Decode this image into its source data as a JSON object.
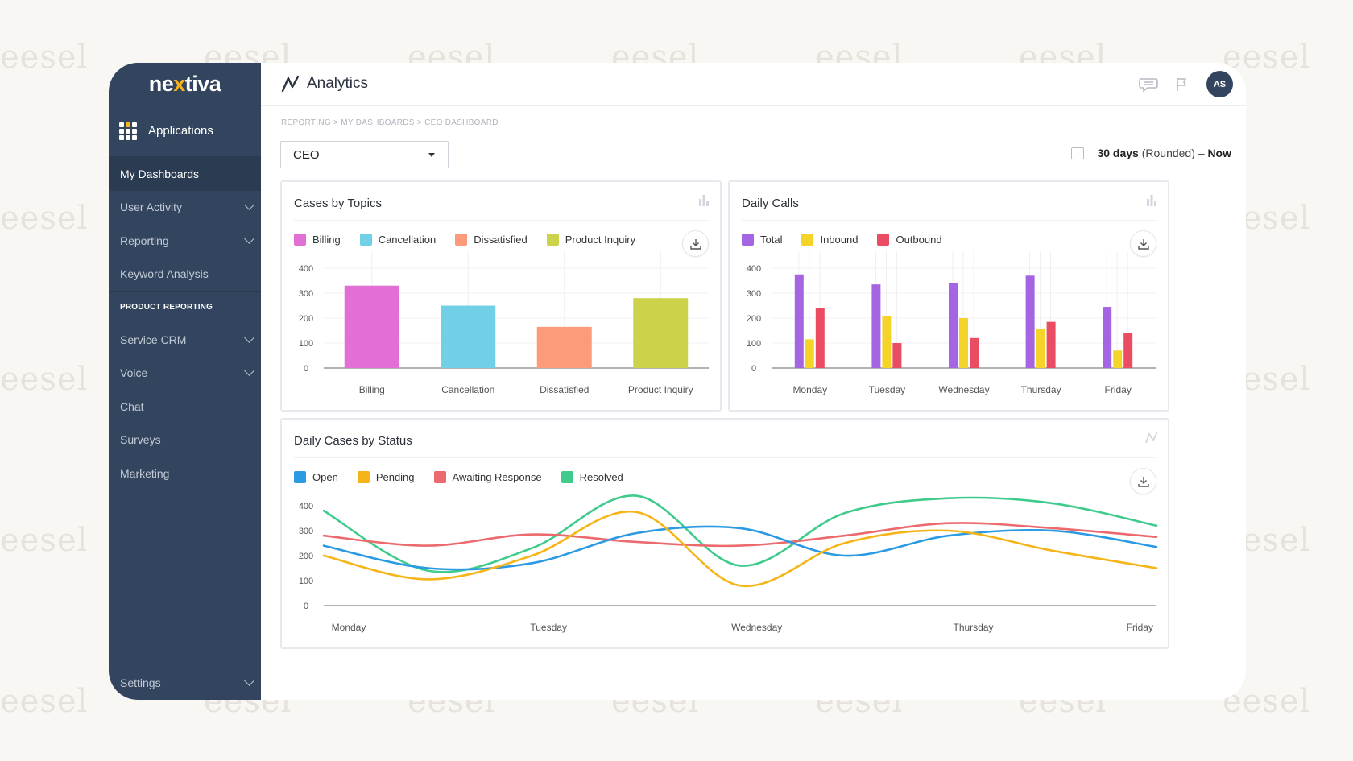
{
  "watermark": "eesel",
  "colors": {
    "sidebar": "#33455e",
    "billing": "#e26fd4",
    "cancellation": "#72d0e6",
    "dissatisfied": "#fb9b7a",
    "product_inquiry": "#ccd24a",
    "total": "#a564e1",
    "inbound": "#f5d42a",
    "outbound": "#ea4d62",
    "open": "#2a9ae2",
    "pending": "#f5b518",
    "awaiting": "#ec6a6e",
    "resolved": "#3fcb8c"
  },
  "sidebar": {
    "logo_pre": "ne",
    "logo_x": "x",
    "logo_post": "tiva",
    "applications": "Applications",
    "items": [
      {
        "label": "My Dashboards",
        "active": true,
        "chevron": false
      },
      {
        "label": "User Activity",
        "chevron": true
      },
      {
        "label": "Reporting",
        "chevron": true
      },
      {
        "label": "Keyword Analysis",
        "chevron": false
      }
    ],
    "section": "PRODUCT REPORTING",
    "product_items": [
      {
        "label": "Service CRM",
        "chevron": true
      },
      {
        "label": "Voice",
        "chevron": true
      },
      {
        "label": "Chat",
        "chevron": false
      },
      {
        "label": "Surveys",
        "chevron": false
      },
      {
        "label": "Marketing",
        "chevron": false
      }
    ],
    "settings": "Settings"
  },
  "header": {
    "title": "Analytics",
    "icons": [
      "chat-icon",
      "flag-icon"
    ],
    "avatar": "AS"
  },
  "breadcrumb": "REPORTING  >  MY DASHBOARDS  >  CEO DASHBOARD",
  "dashboard_select": "CEO",
  "date_range": {
    "bold": "30 days",
    "normal": "(Rounded)  –",
    "end": "Now"
  },
  "cards": {
    "topics": {
      "title": "Cases by Topics"
    },
    "calls": {
      "title": "Daily Calls"
    },
    "status": {
      "title": "Daily Cases by Status"
    }
  },
  "chart_data": [
    {
      "type": "bar",
      "title": "Cases by Topics",
      "categories": [
        "Billing",
        "Cancellation",
        "Dissatisfied",
        "Product Inquiry"
      ],
      "series": [
        {
          "name": "Cases",
          "values": [
            330,
            250,
            165,
            280
          ]
        }
      ],
      "legend": [
        "Billing",
        "Cancellation",
        "Dissatisfied",
        "Product Inquiry"
      ],
      "yticks": [
        0,
        100,
        200,
        300,
        400
      ],
      "ylim": [
        0,
        400
      ]
    },
    {
      "type": "bar",
      "title": "Daily Calls",
      "categories": [
        "Monday",
        "Tuesday",
        "Wednesday",
        "Thursday",
        "Friday"
      ],
      "series": [
        {
          "name": "Total",
          "values": [
            375,
            335,
            340,
            370,
            245
          ]
        },
        {
          "name": "Inbound",
          "values": [
            115,
            210,
            200,
            155,
            70
          ]
        },
        {
          "name": "Outbound",
          "values": [
            240,
            100,
            120,
            185,
            140
          ]
        }
      ],
      "yticks": [
        0,
        100,
        200,
        300,
        400
      ],
      "ylim": [
        0,
        400
      ]
    },
    {
      "type": "line",
      "title": "Daily Cases by Status",
      "categories": [
        "Monday",
        "Tuesday",
        "Wednesday",
        "Thursday",
        "Friday"
      ],
      "x": [
        0,
        0.5,
        1,
        1.5,
        2,
        2.5,
        3,
        3.5,
        4
      ],
      "series": [
        {
          "name": "Open",
          "values": [
            240,
            150,
            170,
            290,
            310,
            200,
            280,
            300,
            235
          ]
        },
        {
          "name": "Pending",
          "values": [
            200,
            105,
            200,
            375,
            80,
            250,
            300,
            220,
            150
          ]
        },
        {
          "name": "Awaiting Response",
          "values": [
            280,
            240,
            285,
            255,
            240,
            280,
            330,
            310,
            275
          ]
        },
        {
          "name": "Resolved",
          "values": [
            380,
            140,
            230,
            440,
            160,
            370,
            430,
            410,
            320
          ]
        }
      ],
      "yticks": [
        0,
        100,
        200,
        300,
        400
      ],
      "ylim": [
        0,
        450
      ]
    }
  ]
}
